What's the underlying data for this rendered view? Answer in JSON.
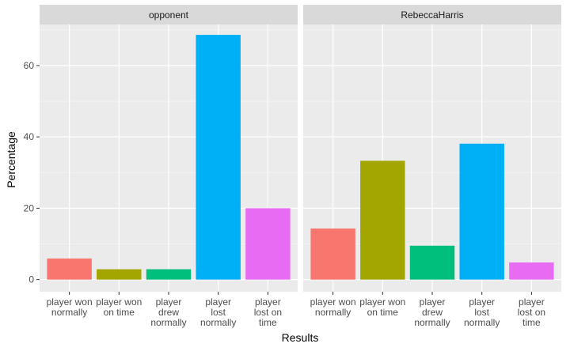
{
  "chart_data": {
    "type": "bar",
    "xlabel": "Results",
    "ylabel": "Percentage",
    "ylim": [
      -3.4,
      71.5
    ],
    "yticks": [
      0,
      20,
      40,
      60
    ],
    "grid": true,
    "legend": "none",
    "categories": [
      "player won normally",
      "player won on time",
      "player drew normally",
      "player lost normally",
      "player lost on time"
    ],
    "category_label_lines": [
      [
        "player won",
        "normally"
      ],
      [
        "player won",
        "on time"
      ],
      [
        "player",
        "drew",
        "normally"
      ],
      [
        "player",
        "lost",
        "normally"
      ],
      [
        "player",
        "lost on",
        "time"
      ]
    ],
    "colors": [
      "#F8766D",
      "#A3A500",
      "#00BF7D",
      "#00B0F6",
      "#E76BF3"
    ],
    "panels": [
      {
        "title": "opponent",
        "values": [
          5.9,
          2.9,
          2.9,
          68.6,
          20.0
        ]
      },
      {
        "title": "RebeccaHarris",
        "values": [
          14.3,
          33.3,
          9.5,
          38.1,
          4.8
        ]
      }
    ]
  }
}
